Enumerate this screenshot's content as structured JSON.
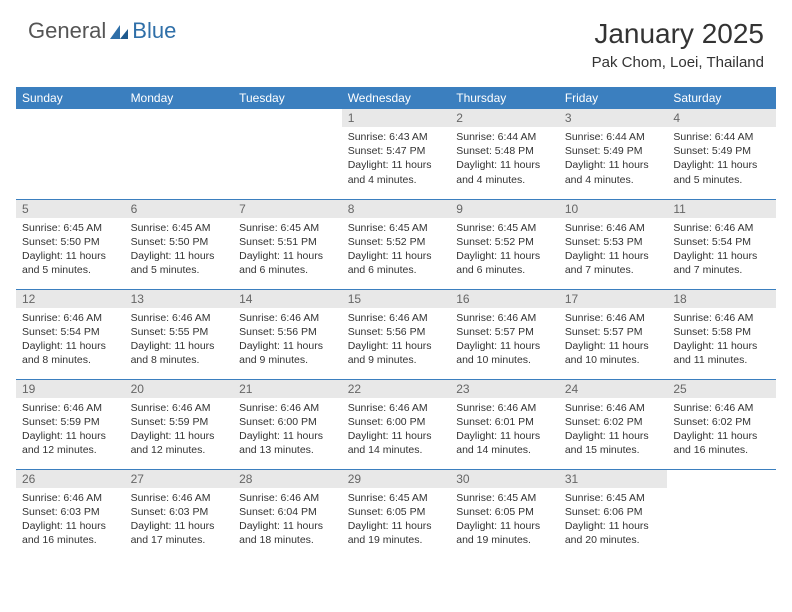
{
  "logo": {
    "general": "General",
    "blue": "Blue"
  },
  "header": {
    "title": "January 2025",
    "location": "Pak Chom, Loei, Thailand"
  },
  "colors": {
    "header_bg": "#3b7fbf",
    "header_text": "#ffffff",
    "daynum_bg": "#e8e8e8",
    "daynum_text": "#666666",
    "row_border": "#3b7fbf",
    "logo_blue": "#2f6fa8",
    "logo_gray": "#555555"
  },
  "weekdays": [
    "Sunday",
    "Monday",
    "Tuesday",
    "Wednesday",
    "Thursday",
    "Friday",
    "Saturday"
  ],
  "weeks": [
    [
      {
        "num": "",
        "sunrise": "",
        "sunset": "",
        "daylight": ""
      },
      {
        "num": "",
        "sunrise": "",
        "sunset": "",
        "daylight": ""
      },
      {
        "num": "",
        "sunrise": "",
        "sunset": "",
        "daylight": ""
      },
      {
        "num": "1",
        "sunrise": "Sunrise: 6:43 AM",
        "sunset": "Sunset: 5:47 PM",
        "daylight": "Daylight: 11 hours and 4 minutes."
      },
      {
        "num": "2",
        "sunrise": "Sunrise: 6:44 AM",
        "sunset": "Sunset: 5:48 PM",
        "daylight": "Daylight: 11 hours and 4 minutes."
      },
      {
        "num": "3",
        "sunrise": "Sunrise: 6:44 AM",
        "sunset": "Sunset: 5:49 PM",
        "daylight": "Daylight: 11 hours and 4 minutes."
      },
      {
        "num": "4",
        "sunrise": "Sunrise: 6:44 AM",
        "sunset": "Sunset: 5:49 PM",
        "daylight": "Daylight: 11 hours and 5 minutes."
      }
    ],
    [
      {
        "num": "5",
        "sunrise": "Sunrise: 6:45 AM",
        "sunset": "Sunset: 5:50 PM",
        "daylight": "Daylight: 11 hours and 5 minutes."
      },
      {
        "num": "6",
        "sunrise": "Sunrise: 6:45 AM",
        "sunset": "Sunset: 5:50 PM",
        "daylight": "Daylight: 11 hours and 5 minutes."
      },
      {
        "num": "7",
        "sunrise": "Sunrise: 6:45 AM",
        "sunset": "Sunset: 5:51 PM",
        "daylight": "Daylight: 11 hours and 6 minutes."
      },
      {
        "num": "8",
        "sunrise": "Sunrise: 6:45 AM",
        "sunset": "Sunset: 5:52 PM",
        "daylight": "Daylight: 11 hours and 6 minutes."
      },
      {
        "num": "9",
        "sunrise": "Sunrise: 6:45 AM",
        "sunset": "Sunset: 5:52 PM",
        "daylight": "Daylight: 11 hours and 6 minutes."
      },
      {
        "num": "10",
        "sunrise": "Sunrise: 6:46 AM",
        "sunset": "Sunset: 5:53 PM",
        "daylight": "Daylight: 11 hours and 7 minutes."
      },
      {
        "num": "11",
        "sunrise": "Sunrise: 6:46 AM",
        "sunset": "Sunset: 5:54 PM",
        "daylight": "Daylight: 11 hours and 7 minutes."
      }
    ],
    [
      {
        "num": "12",
        "sunrise": "Sunrise: 6:46 AM",
        "sunset": "Sunset: 5:54 PM",
        "daylight": "Daylight: 11 hours and 8 minutes."
      },
      {
        "num": "13",
        "sunrise": "Sunrise: 6:46 AM",
        "sunset": "Sunset: 5:55 PM",
        "daylight": "Daylight: 11 hours and 8 minutes."
      },
      {
        "num": "14",
        "sunrise": "Sunrise: 6:46 AM",
        "sunset": "Sunset: 5:56 PM",
        "daylight": "Daylight: 11 hours and 9 minutes."
      },
      {
        "num": "15",
        "sunrise": "Sunrise: 6:46 AM",
        "sunset": "Sunset: 5:56 PM",
        "daylight": "Daylight: 11 hours and 9 minutes."
      },
      {
        "num": "16",
        "sunrise": "Sunrise: 6:46 AM",
        "sunset": "Sunset: 5:57 PM",
        "daylight": "Daylight: 11 hours and 10 minutes."
      },
      {
        "num": "17",
        "sunrise": "Sunrise: 6:46 AM",
        "sunset": "Sunset: 5:57 PM",
        "daylight": "Daylight: 11 hours and 10 minutes."
      },
      {
        "num": "18",
        "sunrise": "Sunrise: 6:46 AM",
        "sunset": "Sunset: 5:58 PM",
        "daylight": "Daylight: 11 hours and 11 minutes."
      }
    ],
    [
      {
        "num": "19",
        "sunrise": "Sunrise: 6:46 AM",
        "sunset": "Sunset: 5:59 PM",
        "daylight": "Daylight: 11 hours and 12 minutes."
      },
      {
        "num": "20",
        "sunrise": "Sunrise: 6:46 AM",
        "sunset": "Sunset: 5:59 PM",
        "daylight": "Daylight: 11 hours and 12 minutes."
      },
      {
        "num": "21",
        "sunrise": "Sunrise: 6:46 AM",
        "sunset": "Sunset: 6:00 PM",
        "daylight": "Daylight: 11 hours and 13 minutes."
      },
      {
        "num": "22",
        "sunrise": "Sunrise: 6:46 AM",
        "sunset": "Sunset: 6:00 PM",
        "daylight": "Daylight: 11 hours and 14 minutes."
      },
      {
        "num": "23",
        "sunrise": "Sunrise: 6:46 AM",
        "sunset": "Sunset: 6:01 PM",
        "daylight": "Daylight: 11 hours and 14 minutes."
      },
      {
        "num": "24",
        "sunrise": "Sunrise: 6:46 AM",
        "sunset": "Sunset: 6:02 PM",
        "daylight": "Daylight: 11 hours and 15 minutes."
      },
      {
        "num": "25",
        "sunrise": "Sunrise: 6:46 AM",
        "sunset": "Sunset: 6:02 PM",
        "daylight": "Daylight: 11 hours and 16 minutes."
      }
    ],
    [
      {
        "num": "26",
        "sunrise": "Sunrise: 6:46 AM",
        "sunset": "Sunset: 6:03 PM",
        "daylight": "Daylight: 11 hours and 16 minutes."
      },
      {
        "num": "27",
        "sunrise": "Sunrise: 6:46 AM",
        "sunset": "Sunset: 6:03 PM",
        "daylight": "Daylight: 11 hours and 17 minutes."
      },
      {
        "num": "28",
        "sunrise": "Sunrise: 6:46 AM",
        "sunset": "Sunset: 6:04 PM",
        "daylight": "Daylight: 11 hours and 18 minutes."
      },
      {
        "num": "29",
        "sunrise": "Sunrise: 6:45 AM",
        "sunset": "Sunset: 6:05 PM",
        "daylight": "Daylight: 11 hours and 19 minutes."
      },
      {
        "num": "30",
        "sunrise": "Sunrise: 6:45 AM",
        "sunset": "Sunset: 6:05 PM",
        "daylight": "Daylight: 11 hours and 19 minutes."
      },
      {
        "num": "31",
        "sunrise": "Sunrise: 6:45 AM",
        "sunset": "Sunset: 6:06 PM",
        "daylight": "Daylight: 11 hours and 20 minutes."
      },
      {
        "num": "",
        "sunrise": "",
        "sunset": "",
        "daylight": ""
      }
    ]
  ]
}
